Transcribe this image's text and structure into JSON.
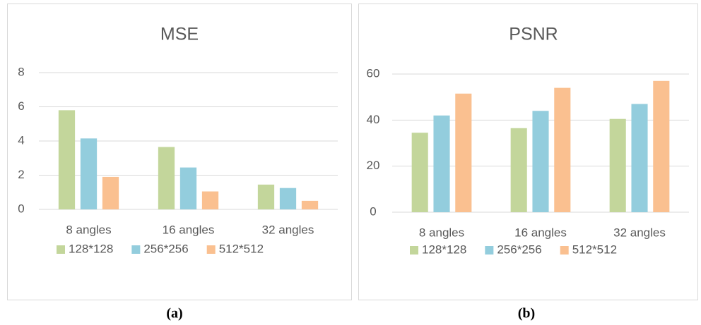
{
  "chart_data": [
    {
      "type": "bar",
      "title": "MSE",
      "categories": [
        "8 angles",
        "16 angles",
        "32 angles"
      ],
      "series": [
        {
          "name": "128*128",
          "color": "#c3d69b",
          "values": [
            5.8,
            3.65,
            1.45
          ]
        },
        {
          "name": "256*256",
          "color": "#93cddd",
          "values": [
            4.15,
            2.45,
            1.25
          ]
        },
        {
          "name": "512*512",
          "color": "#fac090",
          "values": [
            1.9,
            1.05,
            0.5
          ]
        }
      ],
      "ylim": [
        0,
        8
      ],
      "yticks": [
        0,
        2,
        4,
        6,
        8
      ],
      "grid": true,
      "legend": "bottom"
    },
    {
      "type": "bar",
      "title": "PSNR",
      "categories": [
        "8 angles",
        "16 angles",
        "32 angles"
      ],
      "series": [
        {
          "name": "128*128",
          "color": "#c3d69b",
          "values": [
            34.5,
            36.5,
            40.5
          ]
        },
        {
          "name": "256*256",
          "color": "#93cddd",
          "values": [
            42,
            44,
            47
          ]
        },
        {
          "name": "512*512",
          "color": "#fac090",
          "values": [
            51.5,
            54,
            57
          ]
        }
      ],
      "ylim": [
        0,
        60
      ],
      "yticks": [
        0,
        20,
        40,
        60
      ],
      "grid": true,
      "legend": "bottom"
    }
  ],
  "captions": [
    "(a)",
    "(b)"
  ]
}
